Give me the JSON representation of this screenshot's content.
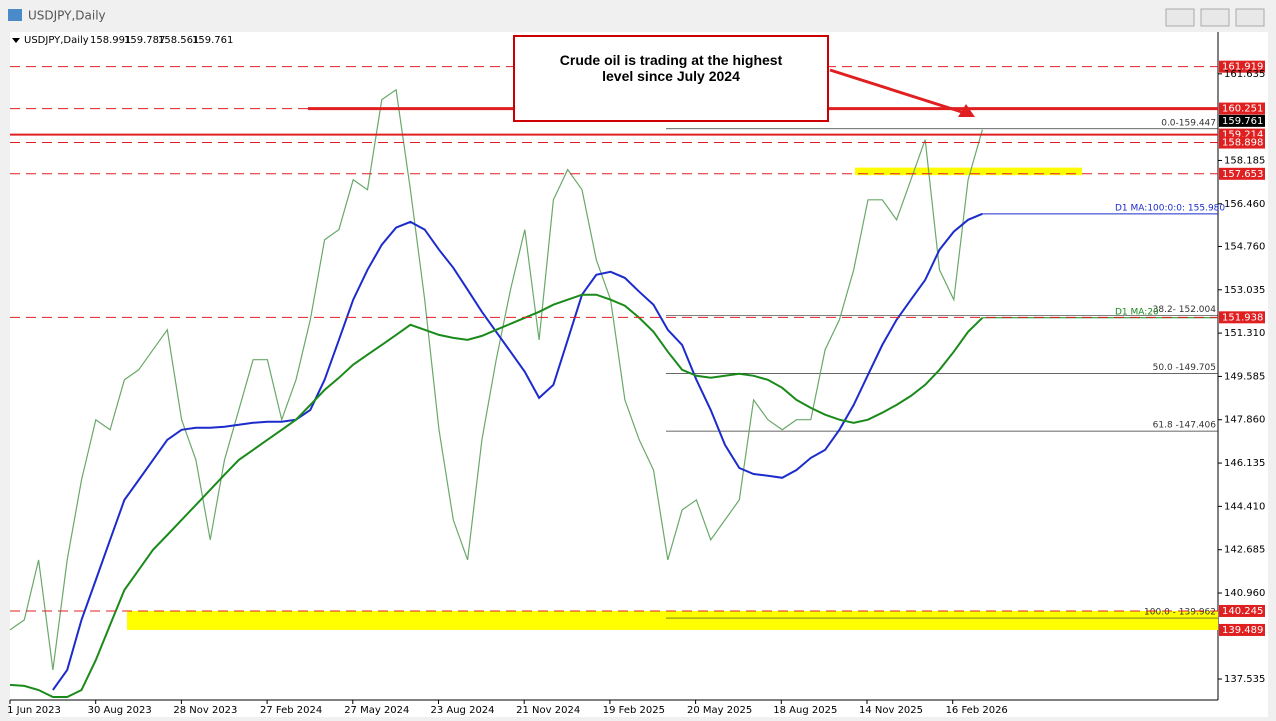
{
  "window_title": "USDJPY,Daily",
  "chart_data": {
    "type": "line",
    "symbol": "USDJPY,Daily",
    "ohlc": [
      158.991,
      159.787,
      158.561,
      159.761
    ],
    "annotation": "Crude oil is trading at the highest level since July 2024",
    "xtick_labels": [
      "1 Jun 2023",
      "30 Aug 2023",
      "28 Nov 2023",
      "27 Feb 2024",
      "27 May 2024",
      "23 Aug 2024",
      "21 Nov 2024",
      "19 Feb 2025",
      "20 May 2025",
      "18 Aug 2025",
      "14 Nov 2025",
      "16 Feb 2026"
    ],
    "ylim": [
      136.7,
      163.3
    ],
    "yticks": [
      161.635,
      158.185,
      {
        "value": 156.46,
        "label": "156.460"
      },
      {
        "value": 154.76,
        "label": "154.760"
      },
      153.035,
      {
        "value": 151.31,
        "label": "151.310"
      },
      149.585,
      {
        "value": 147.86,
        "label": "147.860"
      },
      146.135,
      {
        "value": 144.41,
        "label": "144.410"
      },
      142.685,
      {
        "value": 140.96,
        "label": "140.960"
      },
      137.535
    ],
    "series": [
      {
        "name": "USDJPY",
        "color": "#6aa86a",
        "values": [
          139.49,
          139.89,
          142.28,
          137.9,
          142.28,
          145.46,
          147.86,
          147.46,
          149.45,
          149.85,
          150.65,
          151.44,
          147.86,
          146.26,
          143.08,
          146.26,
          148.25,
          150.25,
          150.25,
          147.86,
          149.45,
          151.84,
          155.03,
          155.43,
          157.42,
          157.02,
          160.61,
          161.0,
          157.02,
          152.64,
          147.46,
          143.87,
          142.28,
          147.06,
          150.25,
          153.04,
          155.43,
          151.04,
          156.62,
          157.82,
          157.02,
          154.23,
          152.64,
          148.65,
          147.06,
          145.86,
          142.28,
          144.27,
          144.67,
          143.08,
          143.87,
          144.67,
          148.65,
          147.86,
          147.46,
          147.86,
          147.86,
          150.65,
          151.84,
          153.83,
          156.62,
          156.62,
          155.82,
          157.42,
          159.01,
          153.83,
          152.64,
          157.42,
          159.41
        ]
      },
      {
        "name": "D1 MA:100:0:0: 155.980",
        "color": "#1c2ccc",
        "values": [
          null,
          null,
          null,
          137.1,
          137.9,
          139.89,
          141.48,
          143.08,
          144.67,
          145.46,
          146.26,
          147.06,
          147.46,
          147.54,
          147.54,
          147.58,
          147.66,
          147.74,
          147.78,
          147.78,
          147.86,
          148.25,
          149.45,
          151.04,
          152.64,
          153.83,
          154.83,
          155.51,
          155.74,
          155.43,
          154.63,
          153.91,
          153.04,
          152.16,
          151.36,
          150.57,
          149.77,
          148.73,
          149.25,
          151.04,
          152.84,
          153.63,
          153.75,
          153.51,
          152.96,
          152.44,
          151.44,
          150.84,
          149.45,
          148.25,
          146.86,
          145.94,
          145.7,
          145.63,
          145.55,
          145.86,
          146.34,
          146.66,
          147.46,
          148.45,
          149.65,
          150.84,
          151.84,
          152.64,
          153.43,
          154.63,
          155.35,
          155.82,
          156.06
        ]
      },
      {
        "name": "D1 MA:20",
        "color": "#1a8a1a",
        "values": [
          137.3,
          137.26,
          137.1,
          136.82,
          136.82,
          137.1,
          138.29,
          139.69,
          141.08,
          141.88,
          142.68,
          143.27,
          143.87,
          144.47,
          145.07,
          145.67,
          146.26,
          146.66,
          147.06,
          147.46,
          147.86,
          148.45,
          149.05,
          149.53,
          150.05,
          150.45,
          150.84,
          151.24,
          151.64,
          151.44,
          151.24,
          151.12,
          151.04,
          151.2,
          151.44,
          151.68,
          151.92,
          152.16,
          152.44,
          152.64,
          152.84,
          152.84,
          152.64,
          152.4,
          151.92,
          151.36,
          150.57,
          149.85,
          149.61,
          149.53,
          149.61,
          149.69,
          149.61,
          149.45,
          149.13,
          148.65,
          148.33,
          148.06,
          147.86,
          147.74,
          147.86,
          148.14,
          148.45,
          148.81,
          149.25,
          149.85,
          150.57,
          151.36,
          151.92
        ]
      }
    ],
    "price_tags": [
      {
        "value": 161.919,
        "color": "#e02020",
        "style": "dashed"
      },
      {
        "value": 160.251,
        "color": "#e02020",
        "style": "dashed"
      },
      {
        "value": 159.761,
        "color": "#000000",
        "style": "none"
      },
      {
        "value": 159.214,
        "color": "#e02020",
        "style": "solid"
      },
      {
        "value": 158.898,
        "color": "#e02020",
        "style": "dashed"
      },
      {
        "value": 157.653,
        "color": "#e02020",
        "style": "dashed"
      },
      {
        "value": 151.938,
        "color": "#e02020",
        "style": "dashed"
      },
      {
        "value": 140.245,
        "color": "#e02020",
        "style": "dashed"
      },
      {
        "value": 139.489,
        "color": "#e02020",
        "style": "none"
      }
    ],
    "fib_levels": [
      {
        "value": 159.447,
        "label": "0.0-159.447"
      },
      {
        "value": 152.004,
        "label": "38.2- 152.004"
      },
      {
        "value": 149.705,
        "label": "50.0 -149.705"
      },
      {
        "value": 147.406,
        "label": "61.8 -147.406"
      },
      {
        "value": 139.962,
        "label": "100.0 - 139.962"
      }
    ],
    "zones": [
      {
        "from": 140.245,
        "to": 139.489,
        "color": "#ffff00"
      },
      {
        "from": 157.9,
        "to": 157.6,
        "color": "#ffff00"
      }
    ]
  }
}
